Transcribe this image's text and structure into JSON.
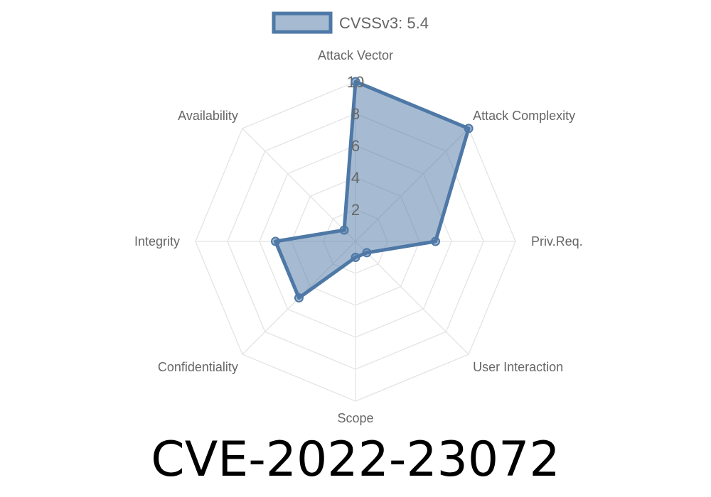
{
  "chart_data": {
    "type": "radar",
    "title": "CVE-2022-23072",
    "categories": [
      "Attack Vector",
      "Attack Complexity",
      "Priv.Req.",
      "User Interaction",
      "Scope",
      "Confidentiality",
      "Integrity",
      "Availability"
    ],
    "series": [
      {
        "name": "CVSSv3: 5.4",
        "values": [
          10,
          10,
          5,
          1,
          1,
          5,
          5,
          1
        ]
      }
    ],
    "rlim": [
      0,
      10
    ],
    "ticks": [
      "2",
      "4",
      "6",
      "8",
      "10"
    ],
    "grid": true,
    "legend": "top",
    "colors": {
      "line": "#4e78a6",
      "fill": "rgba(78,120,166,0.5)",
      "grid": "#e2e2e2",
      "label": "#666666"
    }
  }
}
